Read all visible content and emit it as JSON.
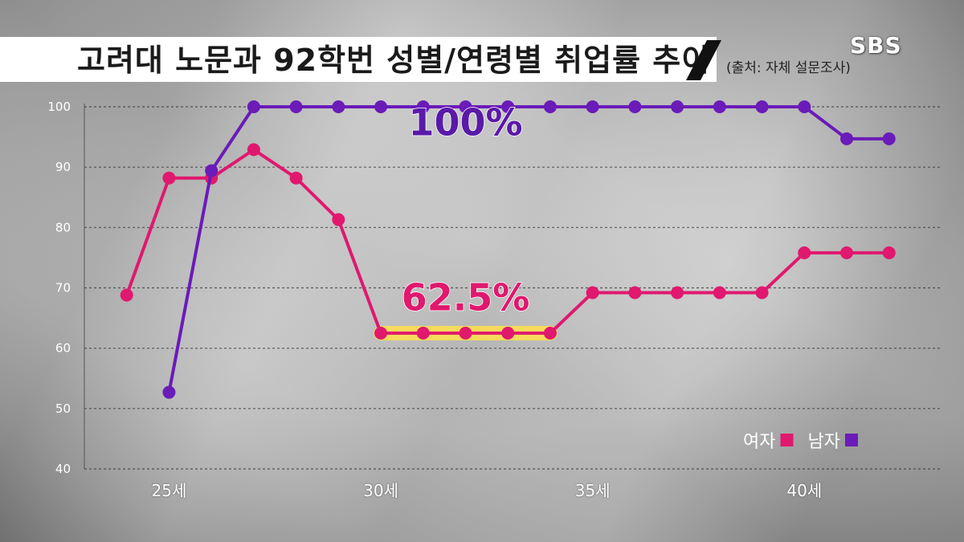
{
  "header": {
    "title": "고려대 노문과 92학번 성별/연령별 취업률 추이",
    "source": "(출처: 자체 설문조사)",
    "logo": "SBS"
  },
  "chart_data": {
    "type": "line",
    "title": "고려대 노문과 92학번 성별/연령별 취업률 추이",
    "xlabel": "",
    "ylabel": "",
    "x": [
      24,
      25,
      26,
      27,
      28,
      29,
      30,
      31,
      32,
      33,
      34,
      35,
      36,
      37,
      38,
      39,
      40,
      41,
      42
    ],
    "x_ticks": [
      {
        "value": 25,
        "label": "25세"
      },
      {
        "value": 30,
        "label": "30세"
      },
      {
        "value": 35,
        "label": "35세"
      },
      {
        "value": 40,
        "label": "40세"
      }
    ],
    "y_ticks": [
      40,
      50,
      60,
      70,
      80,
      90,
      100
    ],
    "xlim": [
      23,
      43.2
    ],
    "ylim": [
      40,
      100
    ],
    "grid": true,
    "legend_position": "bottom-right",
    "series": [
      {
        "name": "여자",
        "color": "#e0186e",
        "x": [
          24,
          25,
          26,
          27,
          28,
          29,
          30,
          31,
          32,
          33,
          34,
          35,
          36,
          37,
          38,
          39,
          40,
          41,
          42
        ],
        "values": [
          68.8,
          88.2,
          88.2,
          92.9,
          88.2,
          81.3,
          62.5,
          62.5,
          62.5,
          62.5,
          62.5,
          69.2,
          69.2,
          69.2,
          69.2,
          69.2,
          75.8,
          75.8,
          75.8
        ]
      },
      {
        "name": "남자",
        "color": "#6a1bb8",
        "x": [
          25,
          26,
          27,
          28,
          29,
          30,
          31,
          32,
          33,
          34,
          35,
          36,
          37,
          38,
          39,
          40,
          41,
          42
        ],
        "values": [
          52.7,
          89.4,
          100,
          100,
          100,
          100,
          100,
          100,
          100,
          100,
          100,
          100,
          100,
          100,
          100,
          100,
          94.7,
          94.7
        ]
      }
    ],
    "annotations": [
      {
        "text": "100%",
        "x": 32,
        "y": 95.3,
        "color": "#5a1aa8"
      },
      {
        "text": "62.5%",
        "x": 32,
        "y": 66.3,
        "color": "#e0186e"
      }
    ],
    "highlight": {
      "series": "여자",
      "from": 30,
      "to": 34,
      "color": "#ffe14a"
    }
  }
}
